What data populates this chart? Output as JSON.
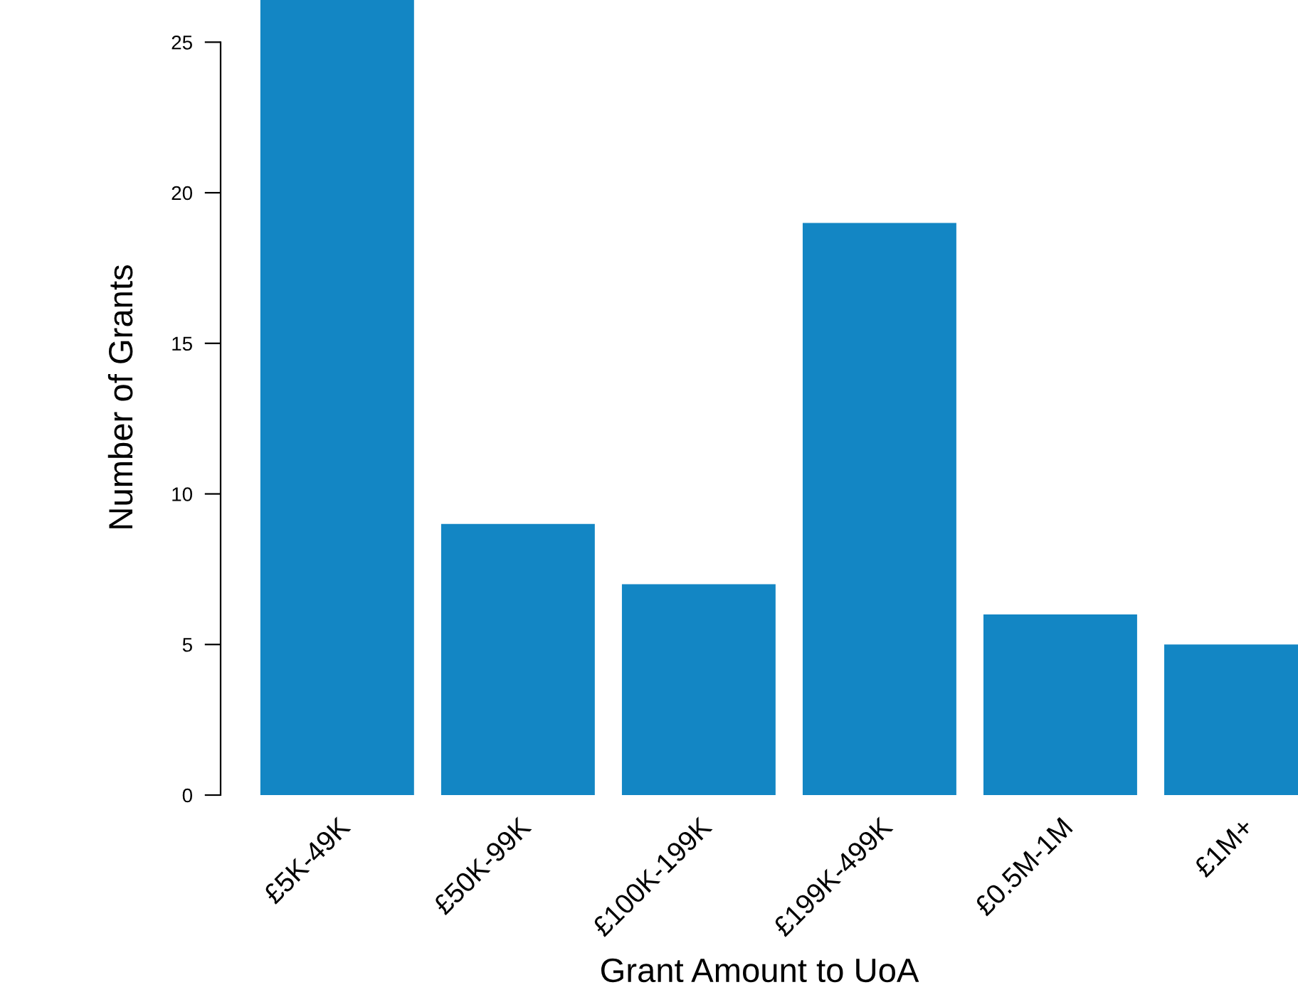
{
  "chart_data": {
    "type": "bar",
    "xlabel": "Grant Amount to UoA",
    "ylabel": "Number of Grants",
    "categories": [
      "£5K-49K",
      "£50K-99K",
      "£100K-199K",
      "£199K-499K",
      "£0.5M-1M",
      "£1M+"
    ],
    "values": [
      26.4,
      9,
      7,
      19,
      6,
      5
    ],
    "color": "#1386c4",
    "ylim": [
      0,
      26.4
    ],
    "yticks": [
      0,
      5,
      10,
      15,
      20,
      25
    ],
    "grid": false,
    "legend": false
  }
}
